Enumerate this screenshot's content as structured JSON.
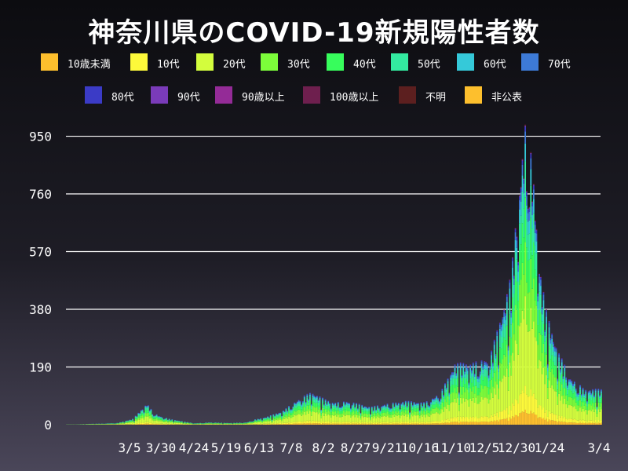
{
  "chart_data": {
    "type": "bar",
    "stacked": true,
    "title": "神奈川県のCOVID-19新規陽性者数",
    "xlabel": "",
    "ylabel": "",
    "ylim": [
      0,
      1000
    ],
    "yticks": [
      0,
      190,
      380,
      570,
      760,
      950
    ],
    "xtick_labels": [
      "3/5",
      "3/30",
      "4/24",
      "5/19",
      "6/13",
      "7/8",
      "8/2",
      "8/27",
      "9/21",
      "10/16",
      "11/10",
      "12/5",
      "12/30",
      "1/24",
      "3/4"
    ],
    "grid": "horizontal",
    "legend_position": "top",
    "series_names": [
      "10歳未満",
      "10代",
      "20代",
      "30代",
      "40代",
      "50代",
      "60代",
      "70代",
      "80代",
      "90代",
      "90歳以上",
      "100歳以上",
      "不明",
      "非公表"
    ],
    "series_colors": [
      "#fdbf2d",
      "#fdf93a",
      "#d3fd3d",
      "#7cfd3a",
      "#37fd5c",
      "#33eba0",
      "#35c9d9",
      "#3d7ad7",
      "#3b3bc6",
      "#7a3bb9",
      "#942b97",
      "#6e1f4e",
      "#5c1f1f",
      "#fdbf2d"
    ],
    "age_share_weights": [
      0.05,
      0.08,
      0.3,
      0.18,
      0.15,
      0.12,
      0.06,
      0.04,
      0.015,
      0.004,
      0.0005,
      0.0005,
      0.003,
      0.0
    ],
    "totals_peak_reference": [
      {
        "date": "2020-04-15",
        "value": 72
      },
      {
        "date": "2020-08-10",
        "value": 110
      },
      {
        "date": "2020-12-05",
        "value": 210
      },
      {
        "date": "2021-01-09",
        "value": 999
      },
      {
        "date": "2021-01-24",
        "value": 380
      },
      {
        "date": "2021-03-04",
        "value": 120
      }
    ],
    "daily_totals": [
      {
        "date": "2020-02-18",
        "value": 1
      },
      {
        "date": "2020-02-25",
        "value": 1
      },
      {
        "date": "2020-03-05",
        "value": 3
      },
      {
        "date": "2020-03-15",
        "value": 4
      },
      {
        "date": "2020-03-25",
        "value": 6
      },
      {
        "date": "2020-03-30",
        "value": 12
      },
      {
        "date": "2020-04-05",
        "value": 20
      },
      {
        "date": "2020-04-10",
        "value": 45
      },
      {
        "date": "2020-04-15",
        "value": 72
      },
      {
        "date": "2020-04-20",
        "value": 40
      },
      {
        "date": "2020-04-24",
        "value": 30
      },
      {
        "date": "2020-05-01",
        "value": 20
      },
      {
        "date": "2020-05-10",
        "value": 12
      },
      {
        "date": "2020-05-19",
        "value": 5
      },
      {
        "date": "2020-05-30",
        "value": 8
      },
      {
        "date": "2020-06-13",
        "value": 6
      },
      {
        "date": "2020-06-25",
        "value": 8
      },
      {
        "date": "2020-07-01",
        "value": 18
      },
      {
        "date": "2020-07-08",
        "value": 25
      },
      {
        "date": "2020-07-20",
        "value": 45
      },
      {
        "date": "2020-08-02",
        "value": 90
      },
      {
        "date": "2020-08-10",
        "value": 110
      },
      {
        "date": "2020-08-20",
        "value": 85
      },
      {
        "date": "2020-08-27",
        "value": 75
      },
      {
        "date": "2020-09-05",
        "value": 80
      },
      {
        "date": "2020-09-21",
        "value": 60
      },
      {
        "date": "2020-10-01",
        "value": 70
      },
      {
        "date": "2020-10-16",
        "value": 80
      },
      {
        "date": "2020-10-30",
        "value": 75
      },
      {
        "date": "2020-11-10",
        "value": 110
      },
      {
        "date": "2020-11-20",
        "value": 205
      },
      {
        "date": "2020-12-05",
        "value": 210
      },
      {
        "date": "2020-12-15",
        "value": 230
      },
      {
        "date": "2020-12-25",
        "value": 400
      },
      {
        "date": "2020-12-30",
        "value": 500
      },
      {
        "date": "2021-01-05",
        "value": 820
      },
      {
        "date": "2021-01-09",
        "value": 999
      },
      {
        "date": "2021-01-14",
        "value": 880
      },
      {
        "date": "2021-01-20",
        "value": 500
      },
      {
        "date": "2021-01-24",
        "value": 380
      },
      {
        "date": "2021-02-01",
        "value": 250
      },
      {
        "date": "2021-02-10",
        "value": 160
      },
      {
        "date": "2021-02-20",
        "value": 120
      },
      {
        "date": "2021-03-04",
        "value": 120
      }
    ]
  }
}
